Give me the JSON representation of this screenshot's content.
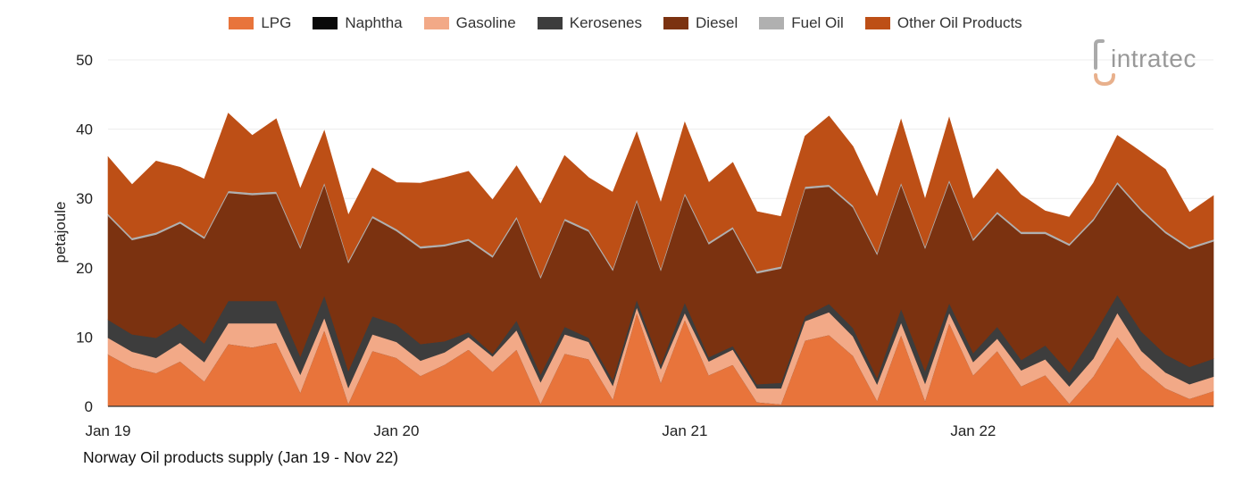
{
  "caption": "Norway Oil products supply (Jan 19 - Nov 22)",
  "logo": {
    "text": "intratec",
    "icon": "intratec-logo-icon"
  },
  "chart_data": {
    "type": "area",
    "stacked": true,
    "ylabel": "petajoule",
    "xlabel": "",
    "ylim": [
      0,
      50
    ],
    "yticks": [
      0,
      10,
      20,
      30,
      40,
      50
    ],
    "x_tick_labels": [
      {
        "label": "Jan 19",
        "index": 0
      },
      {
        "label": "Jan 20",
        "index": 12
      },
      {
        "label": "Jan 21",
        "index": 24
      },
      {
        "label": "Jan 22",
        "index": 36
      }
    ],
    "grid": true,
    "legend_position": "top-center",
    "x": [
      "Jan 19",
      "Feb 19",
      "Mar 19",
      "Apr 19",
      "May 19",
      "Jun 19",
      "Jul 19",
      "Aug 19",
      "Sep 19",
      "Oct 19",
      "Nov 19",
      "Dec 19",
      "Jan 20",
      "Feb 20",
      "Mar 20",
      "Apr 20",
      "May 20",
      "Jun 20",
      "Jul 20",
      "Aug 20",
      "Sep 20",
      "Oct 20",
      "Nov 20",
      "Dec 20",
      "Jan 21",
      "Feb 21",
      "Mar 21",
      "Apr 21",
      "May 21",
      "Jun 21",
      "Jul 21",
      "Aug 21",
      "Sep 21",
      "Oct 21",
      "Nov 21",
      "Dec 21",
      "Jan 22",
      "Feb 22",
      "Mar 22",
      "Apr 22",
      "May 22",
      "Jun 22",
      "Jul 22",
      "Aug 22",
      "Sep 22",
      "Oct 22",
      "Nov 22"
    ],
    "series": [
      {
        "name": "LPG",
        "color": "#e8743b",
        "values": [
          7.5,
          5.6,
          4.8,
          6.5,
          3.6,
          9.0,
          8.5,
          9.2,
          2.0,
          11.0,
          0.4,
          8.0,
          7.0,
          4.4,
          6.0,
          8.2,
          5.0,
          8.2,
          0.4,
          7.6,
          6.8,
          1.0,
          13.5,
          3.4,
          12.5,
          4.5,
          6.0,
          0.6,
          0.3,
          9.5,
          10.3,
          7.3,
          0.8,
          10.3,
          0.8,
          12.0,
          4.5,
          8.0,
          2.9,
          4.5,
          0.4,
          4.3,
          10.0,
          5.5,
          2.6,
          1.1,
          2.2
        ]
      },
      {
        "name": "Naphtha",
        "color": "#0a0a0a",
        "values": [
          0,
          0,
          0,
          0,
          0,
          0,
          0,
          0,
          0,
          0,
          0,
          0,
          0,
          0,
          0,
          0,
          0,
          0,
          0,
          0,
          0,
          0,
          0,
          0,
          0,
          0,
          0,
          0,
          0,
          0,
          0,
          0,
          0,
          0,
          0,
          0,
          0,
          0,
          0,
          0,
          0,
          0,
          0,
          0,
          0,
          0,
          0
        ]
      },
      {
        "name": "Gasoline",
        "color": "#f2a987",
        "values": [
          2.4,
          2.3,
          2.2,
          2.7,
          2.8,
          3.0,
          3.5,
          2.8,
          2.6,
          1.8,
          2.3,
          2.4,
          2.3,
          2.2,
          1.8,
          1.8,
          2.2,
          2.8,
          3.1,
          2.8,
          2.5,
          2.0,
          0.8,
          2.0,
          1.0,
          2.0,
          2.2,
          2.0,
          2.3,
          2.8,
          3.3,
          2.8,
          2.4,
          1.8,
          2.5,
          1.5,
          1.9,
          1.8,
          2.3,
          2.3,
          2.5,
          2.6,
          3.5,
          2.5,
          2.3,
          2.1,
          2.1
        ]
      },
      {
        "name": "Kerosenes",
        "color": "#3d3d3d",
        "values": [
          2.6,
          2.5,
          2.9,
          2.8,
          2.7,
          3.2,
          3.2,
          3.2,
          2.6,
          3.2,
          2.4,
          2.6,
          2.5,
          2.4,
          1.6,
          0.7,
          0.4,
          1.4,
          1.1,
          1.1,
          0.6,
          0.8,
          1.1,
          0.6,
          1.5,
          0.6,
          0.5,
          0.6,
          0.8,
          0.7,
          1.2,
          1.2,
          0.9,
          2.0,
          1.8,
          1.4,
          1.3,
          1.7,
          1.5,
          2.0,
          2.0,
          3.3,
          2.6,
          2.8,
          2.6,
          2.5,
          2.6
        ]
      },
      {
        "name": "Diesel",
        "color": "#7b3210",
        "values": [
          15.0,
          13.6,
          14.9,
          14.4,
          15.1,
          15.6,
          15.3,
          15.5,
          15.6,
          16.0,
          15.6,
          14.2,
          13.5,
          13.8,
          13.7,
          13.2,
          13.9,
          14.7,
          13.9,
          15.3,
          15.3,
          15.8,
          14.2,
          13.6,
          15.5,
          16.3,
          16.9,
          16.0,
          16.5,
          18.4,
          16.9,
          17.4,
          17.8,
          17.9,
          17.7,
          17.5,
          16.2,
          16.3,
          18.2,
          16.1,
          18.3,
          16.6,
          16.0,
          17.4,
          17.5,
          17.0,
          16.9
        ]
      },
      {
        "name": "Fuel Oil",
        "color": "#b0b0b0",
        "values": [
          0.3,
          0.3,
          0.3,
          0.3,
          0.3,
          0.3,
          0.3,
          0.3,
          0.3,
          0.3,
          0.3,
          0.3,
          0.3,
          0.3,
          0.3,
          0.3,
          0.3,
          0.3,
          0.3,
          0.3,
          0.3,
          0.3,
          0.3,
          0.3,
          0.3,
          0.3,
          0.3,
          0.3,
          0.3,
          0.3,
          0.3,
          0.3,
          0.3,
          0.3,
          0.3,
          0.3,
          0.3,
          0.3,
          0.3,
          0.3,
          0.3,
          0.3,
          0.3,
          0.3,
          0.3,
          0.3,
          0.3
        ]
      },
      {
        "name": "Other Oil Products",
        "color": "#bd4f16",
        "values": [
          8.2,
          7.7,
          10.3,
          7.8,
          8.3,
          11.2,
          8.3,
          10.5,
          8.3,
          7.5,
          6.6,
          6.9,
          6.7,
          9.1,
          9.6,
          9.7,
          8.0,
          7.3,
          10.4,
          9.1,
          7.5,
          11.0,
          9.7,
          9.5,
          10.2,
          8.6,
          9.3,
          8.6,
          7.2,
          7.3,
          9.9,
          8.5,
          8.0,
          9.1,
          6.8,
          9.0,
          5.7,
          6.2,
          5.3,
          3.0,
          3.8,
          5.1,
          6.7,
          8.2,
          8.9,
          5.0,
          6.3
        ]
      }
    ]
  }
}
